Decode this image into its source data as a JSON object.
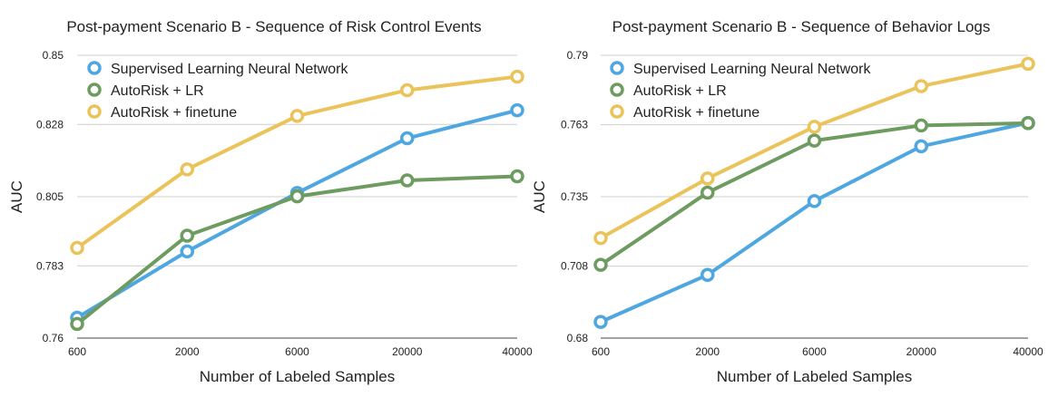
{
  "colors": {
    "supervised": "#4EA7E0",
    "autorisk_lr": "#6E9B60",
    "autorisk_finetune": "#EAC45A"
  },
  "chart_data": [
    {
      "type": "line",
      "title": "Post-payment Scenario B - Sequence of Risk Control Events",
      "xlabel": "Number of Labeled Samples",
      "ylabel": "AUC",
      "categories": [
        "600",
        "2000",
        "6000",
        "20000",
        "40000"
      ],
      "ylim": [
        0.76,
        0.85
      ],
      "yticks": [
        "0.76",
        "0.783",
        "0.805",
        "0.828",
        "0.85"
      ],
      "grid": true,
      "legend": "top-left",
      "series": [
        {
          "name": "Supervised Learning Neural Network",
          "color_key": "supervised",
          "values": [
            0.7665,
            0.7876,
            0.8062,
            0.8236,
            0.8325
          ]
        },
        {
          "name": "AutoRisk + LR",
          "color_key": "autorisk_lr",
          "values": [
            0.7645,
            0.7926,
            0.8051,
            0.8102,
            0.8115
          ]
        },
        {
          "name": "AutoRisk +  finetune",
          "color_key": "autorisk_finetune",
          "values": [
            0.7887,
            0.8137,
            0.8307,
            0.8389,
            0.8432
          ]
        }
      ]
    },
    {
      "type": "line",
      "title": "Post-payment Scenario B - Sequence of Behavior Logs",
      "xlabel": "Number of Labeled Samples",
      "ylabel": "AUC",
      "categories": [
        "600",
        "2000",
        "6000",
        "20000",
        "40000"
      ],
      "ylim": [
        0.68,
        0.79
      ],
      "yticks": [
        "0.68",
        "0.708",
        "0.735",
        "0.763",
        "0.79"
      ],
      "grid": true,
      "legend": "top-left",
      "series": [
        {
          "name": "Supervised Learning Neural Network",
          "color_key": "supervised",
          "values": [
            0.6863,
            0.7046,
            0.7333,
            0.7546,
            0.7637
          ]
        },
        {
          "name": "AutoRisk + LR",
          "color_key": "autorisk_lr",
          "values": [
            0.7085,
            0.7366,
            0.7568,
            0.7627,
            0.7636
          ]
        },
        {
          "name": "AutoRisk +  finetune",
          "color_key": "autorisk_finetune",
          "values": [
            0.7189,
            0.7421,
            0.7622,
            0.778,
            0.7867
          ]
        }
      ]
    }
  ]
}
